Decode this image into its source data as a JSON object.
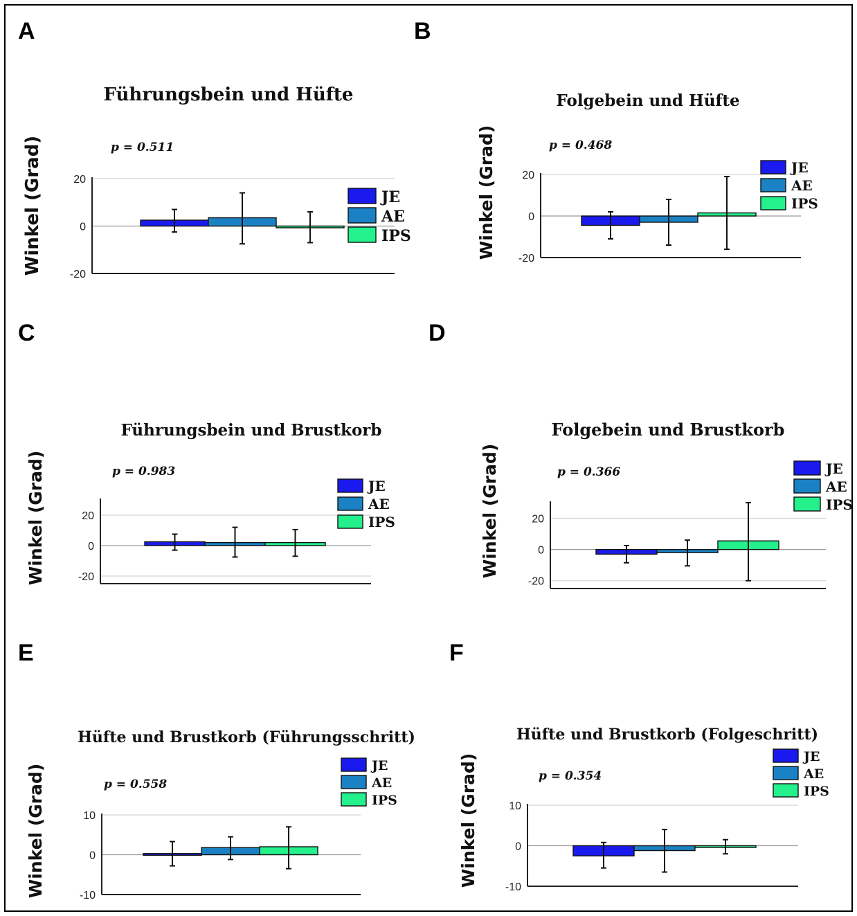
{
  "colors": {
    "JE": "#1a1aef",
    "AE": "#1a82c4",
    "IPS": "#24f08c"
  },
  "legend": [
    "JE",
    "AE",
    "IPS"
  ],
  "chart_data": [
    {
      "id": "A",
      "panel_label": "A",
      "type": "bar",
      "title": "Führungsbein und Hüfte",
      "p_text": "p = 0.511",
      "ylabel": "Winkel (Grad)",
      "ylim": [
        -20,
        20
      ],
      "yticks": [
        20,
        0,
        -20
      ],
      "categories": [
        "JE",
        "AE",
        "IPS"
      ],
      "values": [
        2.5,
        3.5,
        -0.5
      ],
      "error_low": [
        -2.5,
        -7.5,
        -7
      ],
      "error_high": [
        7,
        14,
        6
      ]
    },
    {
      "id": "B",
      "panel_label": "B",
      "type": "bar",
      "title": "Folgebein und Hüfte",
      "p_text": "p = 0.468",
      "ylabel": "Winkel (Grad)",
      "ylim": [
        -20,
        20
      ],
      "yticks": [
        20,
        0,
        -20
      ],
      "categories": [
        "JE",
        "AE",
        "IPS"
      ],
      "values": [
        -4.5,
        -3,
        1.5
      ],
      "error_low": [
        -11,
        -14,
        -16
      ],
      "error_high": [
        2,
        8,
        19
      ]
    },
    {
      "id": "C",
      "panel_label": "C",
      "type": "bar",
      "title": "Führungsbein und Brustkorb",
      "p_text": "p = 0.983",
      "ylabel": "Winkel (Grad)",
      "ylim": [
        -25,
        30
      ],
      "yticks": [
        20,
        0,
        -20
      ],
      "categories": [
        "JE",
        "AE",
        "IPS"
      ],
      "values": [
        2.5,
        2,
        2
      ],
      "error_low": [
        -3,
        -7.5,
        -7
      ],
      "error_high": [
        7.5,
        12,
        10.5
      ]
    },
    {
      "id": "D",
      "panel_label": "D",
      "type": "bar",
      "title": "Folgebein und Brustkorb",
      "p_text": "p = 0.366",
      "ylabel": "Winkel (Grad)",
      "ylim": [
        -25,
        30
      ],
      "yticks": [
        20,
        0,
        -20
      ],
      "categories": [
        "JE",
        "AE",
        "IPS"
      ],
      "values": [
        -3,
        -2,
        5.5
      ],
      "error_low": [
        -8.5,
        -10.5,
        -20
      ],
      "error_high": [
        2.5,
        6,
        30
      ]
    },
    {
      "id": "E",
      "panel_label": "E",
      "type": "bar",
      "title": "Hüfte und Brustkorb (Führungsschritt)",
      "p_text": "p = 0.558",
      "ylabel": "Winkel (Grad)",
      "ylim": [
        -10,
        10
      ],
      "yticks": [
        10,
        0,
        -10
      ],
      "categories": [
        "JE",
        "AE",
        "IPS"
      ],
      "values": [
        0.3,
        1.8,
        2
      ],
      "error_low": [
        -2.8,
        -1.2,
        -3.5
      ],
      "error_high": [
        3.3,
        4.5,
        7
      ]
    },
    {
      "id": "F",
      "panel_label": "F",
      "type": "bar",
      "title": "Hüfte und Brustkorb (Folgeschritt)",
      "p_text": "p = 0.354",
      "ylabel": "Winkel (Grad)",
      "ylim": [
        -10,
        10
      ],
      "yticks": [
        10,
        0,
        -10
      ],
      "categories": [
        "JE",
        "AE",
        "IPS"
      ],
      "values": [
        -2.5,
        -1.2,
        -0.3
      ],
      "error_low": [
        -5.5,
        -6.5,
        -2
      ],
      "error_high": [
        0.8,
        4,
        1.5
      ]
    }
  ]
}
